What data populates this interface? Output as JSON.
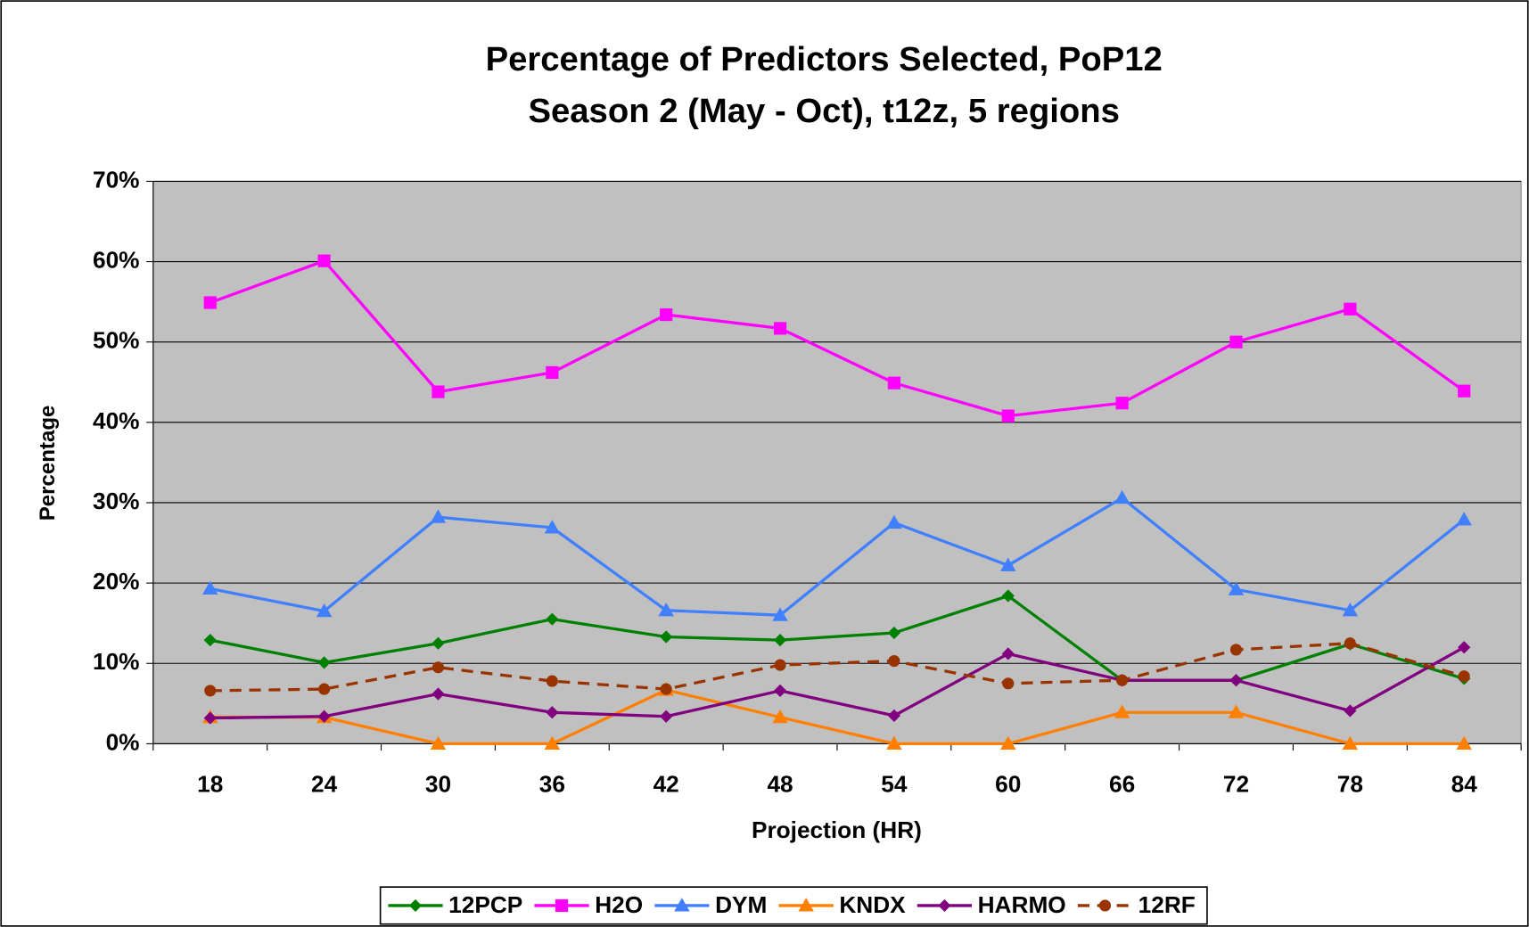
{
  "chart_data": {
    "type": "line",
    "title": "Percentage of Predictors Selected, PoP12",
    "subtitle": "Season 2 (May - Oct), t12z, 5 regions",
    "x_label": "Projection (HR)",
    "y_label": "Percentage",
    "categories": [
      "18",
      "24",
      "30",
      "36",
      "42",
      "48",
      "54",
      "60",
      "66",
      "72",
      "78",
      "84"
    ],
    "ylim": [
      0,
      70
    ],
    "yticks": [
      {
        "value": 0,
        "label": "0%"
      },
      {
        "value": 10,
        "label": "10%"
      },
      {
        "value": 20,
        "label": "20%"
      },
      {
        "value": 30,
        "label": "30%"
      },
      {
        "value": 40,
        "label": "40%"
      },
      {
        "value": 50,
        "label": "50%"
      },
      {
        "value": 60,
        "label": "60%"
      },
      {
        "value": 70,
        "label": "70%"
      }
    ],
    "grid": true,
    "legend": "bottom",
    "series": [
      {
        "name": "12PCP",
        "color": "#008000",
        "marker": "diamond",
        "values": [
          12.9,
          10.1,
          12.5,
          15.5,
          13.3,
          12.9,
          13.8,
          18.4,
          7.9,
          7.9,
          12.4,
          8.1
        ]
      },
      {
        "name": "H2O",
        "color": "#ff00ff",
        "marker": "square",
        "values": [
          54.9,
          60.1,
          43.8,
          46.2,
          53.4,
          51.7,
          44.9,
          40.8,
          42.4,
          50.0,
          54.1,
          43.9
        ]
      },
      {
        "name": "DYM",
        "color": "#4080ff",
        "marker": "triangle",
        "values": [
          19.3,
          16.5,
          28.2,
          26.9,
          16.6,
          16.0,
          27.5,
          22.2,
          30.6,
          19.2,
          16.6,
          27.9
        ]
      },
      {
        "name": "KNDX",
        "color": "#ff7f00",
        "marker": "triangle",
        "values": [
          3.3,
          3.3,
          0,
          0,
          6.7,
          3.3,
          0,
          0,
          3.9,
          3.9,
          0,
          0
        ]
      },
      {
        "name": "HARMO",
        "color": "#800080",
        "marker": "diamond",
        "values": [
          3.2,
          3.4,
          6.2,
          3.9,
          3.4,
          6.6,
          3.5,
          11.2,
          7.9,
          7.9,
          4.1,
          12.0
        ]
      },
      {
        "name": "12RF",
        "color": "#993300",
        "marker": "circle",
        "dashed": true,
        "values": [
          6.6,
          6.8,
          9.5,
          7.8,
          6.8,
          9.8,
          10.3,
          7.5,
          7.9,
          11.7,
          12.5,
          8.4
        ]
      }
    ]
  }
}
